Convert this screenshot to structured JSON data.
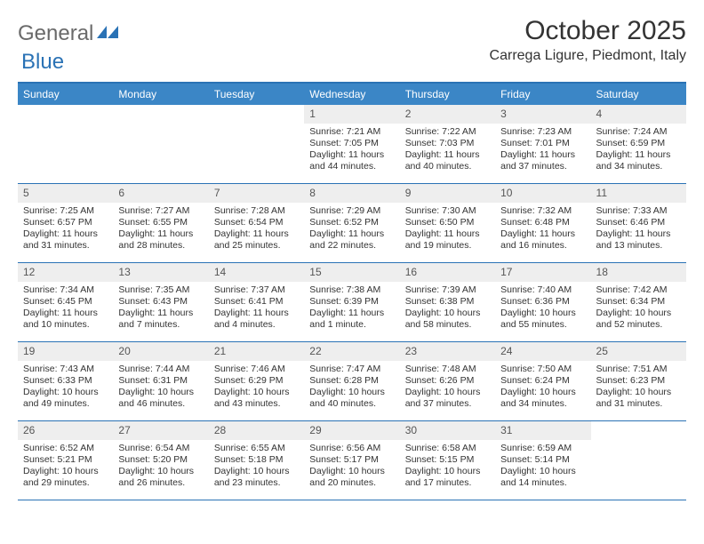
{
  "brand": {
    "word1": "General",
    "word2": "Blue"
  },
  "title": "October 2025",
  "location": "Carrega Ligure, Piedmont, Italy",
  "colors": {
    "accent": "#3b86c6",
    "accent_dark": "#2a72b5",
    "daynum_bg": "#eeeeee",
    "text": "#333333",
    "logo_gray": "#6a6a6a"
  },
  "days_of_week": [
    "Sunday",
    "Monday",
    "Tuesday",
    "Wednesday",
    "Thursday",
    "Friday",
    "Saturday"
  ],
  "weeks": [
    [
      null,
      null,
      null,
      {
        "n": "1",
        "sr": "7:21 AM",
        "ss": "7:05 PM",
        "dl": "11 hours and 44 minutes."
      },
      {
        "n": "2",
        "sr": "7:22 AM",
        "ss": "7:03 PM",
        "dl": "11 hours and 40 minutes."
      },
      {
        "n": "3",
        "sr": "7:23 AM",
        "ss": "7:01 PM",
        "dl": "11 hours and 37 minutes."
      },
      {
        "n": "4",
        "sr": "7:24 AM",
        "ss": "6:59 PM",
        "dl": "11 hours and 34 minutes."
      }
    ],
    [
      {
        "n": "5",
        "sr": "7:25 AM",
        "ss": "6:57 PM",
        "dl": "11 hours and 31 minutes."
      },
      {
        "n": "6",
        "sr": "7:27 AM",
        "ss": "6:55 PM",
        "dl": "11 hours and 28 minutes."
      },
      {
        "n": "7",
        "sr": "7:28 AM",
        "ss": "6:54 PM",
        "dl": "11 hours and 25 minutes."
      },
      {
        "n": "8",
        "sr": "7:29 AM",
        "ss": "6:52 PM",
        "dl": "11 hours and 22 minutes."
      },
      {
        "n": "9",
        "sr": "7:30 AM",
        "ss": "6:50 PM",
        "dl": "11 hours and 19 minutes."
      },
      {
        "n": "10",
        "sr": "7:32 AM",
        "ss": "6:48 PM",
        "dl": "11 hours and 16 minutes."
      },
      {
        "n": "11",
        "sr": "7:33 AM",
        "ss": "6:46 PM",
        "dl": "11 hours and 13 minutes."
      }
    ],
    [
      {
        "n": "12",
        "sr": "7:34 AM",
        "ss": "6:45 PM",
        "dl": "11 hours and 10 minutes."
      },
      {
        "n": "13",
        "sr": "7:35 AM",
        "ss": "6:43 PM",
        "dl": "11 hours and 7 minutes."
      },
      {
        "n": "14",
        "sr": "7:37 AM",
        "ss": "6:41 PM",
        "dl": "11 hours and 4 minutes."
      },
      {
        "n": "15",
        "sr": "7:38 AM",
        "ss": "6:39 PM",
        "dl": "11 hours and 1 minute."
      },
      {
        "n": "16",
        "sr": "7:39 AM",
        "ss": "6:38 PM",
        "dl": "10 hours and 58 minutes."
      },
      {
        "n": "17",
        "sr": "7:40 AM",
        "ss": "6:36 PM",
        "dl": "10 hours and 55 minutes."
      },
      {
        "n": "18",
        "sr": "7:42 AM",
        "ss": "6:34 PM",
        "dl": "10 hours and 52 minutes."
      }
    ],
    [
      {
        "n": "19",
        "sr": "7:43 AM",
        "ss": "6:33 PM",
        "dl": "10 hours and 49 minutes."
      },
      {
        "n": "20",
        "sr": "7:44 AM",
        "ss": "6:31 PM",
        "dl": "10 hours and 46 minutes."
      },
      {
        "n": "21",
        "sr": "7:46 AM",
        "ss": "6:29 PM",
        "dl": "10 hours and 43 minutes."
      },
      {
        "n": "22",
        "sr": "7:47 AM",
        "ss": "6:28 PM",
        "dl": "10 hours and 40 minutes."
      },
      {
        "n": "23",
        "sr": "7:48 AM",
        "ss": "6:26 PM",
        "dl": "10 hours and 37 minutes."
      },
      {
        "n": "24",
        "sr": "7:50 AM",
        "ss": "6:24 PM",
        "dl": "10 hours and 34 minutes."
      },
      {
        "n": "25",
        "sr": "7:51 AM",
        "ss": "6:23 PM",
        "dl": "10 hours and 31 minutes."
      }
    ],
    [
      {
        "n": "26",
        "sr": "6:52 AM",
        "ss": "5:21 PM",
        "dl": "10 hours and 29 minutes."
      },
      {
        "n": "27",
        "sr": "6:54 AM",
        "ss": "5:20 PM",
        "dl": "10 hours and 26 minutes."
      },
      {
        "n": "28",
        "sr": "6:55 AM",
        "ss": "5:18 PM",
        "dl": "10 hours and 23 minutes."
      },
      {
        "n": "29",
        "sr": "6:56 AM",
        "ss": "5:17 PM",
        "dl": "10 hours and 20 minutes."
      },
      {
        "n": "30",
        "sr": "6:58 AM",
        "ss": "5:15 PM",
        "dl": "10 hours and 17 minutes."
      },
      {
        "n": "31",
        "sr": "6:59 AM",
        "ss": "5:14 PM",
        "dl": "10 hours and 14 minutes."
      },
      null
    ]
  ],
  "labels": {
    "sunrise": "Sunrise:",
    "sunset": "Sunset:",
    "daylight": "Daylight:"
  }
}
